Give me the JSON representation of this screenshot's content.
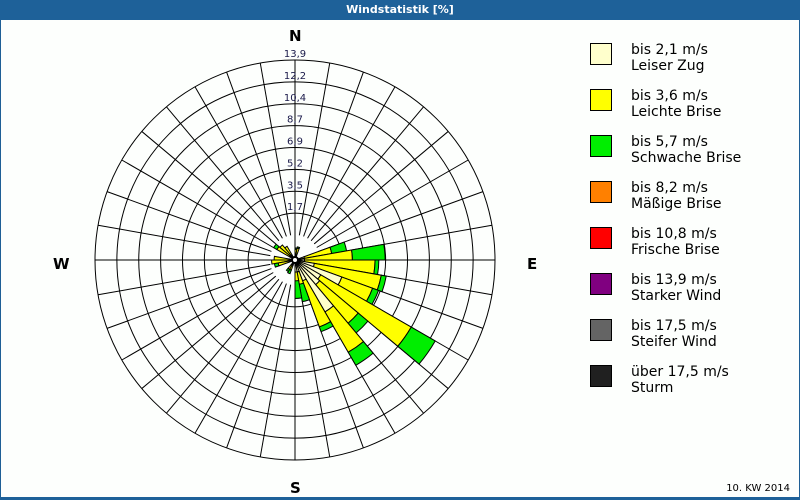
{
  "header": {
    "title": "Windstatistik [%]"
  },
  "footer": {
    "period": "10. KW 2014"
  },
  "compass": {
    "n": "N",
    "e": "E",
    "s": "S",
    "w": "W"
  },
  "legend": [
    {
      "range": "bis 2,1 m/s",
      "name": "Leiser Zug",
      "color": "#ffffcc"
    },
    {
      "range": "bis 3,6 m/s",
      "name": "Leichte Brise",
      "color": "#ffff00"
    },
    {
      "range": "bis 5,7 m/s",
      "name": "Schwache Brise",
      "color": "#00ee00"
    },
    {
      "range": "bis 8,2 m/s",
      "name": "Mäßige Brise",
      "color": "#ff8000"
    },
    {
      "range": "bis 10,8 m/s",
      "name": "Frische Brise",
      "color": "#ff0000"
    },
    {
      "range": "bis 13,9 m/s",
      "name": "Starker Wind",
      "color": "#800080"
    },
    {
      "range": "bis 17,5 m/s",
      "name": "Steifer Wind",
      "color": "#646464"
    },
    {
      "range": "über 17,5 m/s",
      "name": "Sturm",
      "color": "#202020"
    }
  ],
  "chart_data": {
    "type": "polar-stacked-bar (wind rose)",
    "title": "Windstatistik [%]",
    "subtitle": "10. KW 2014",
    "radial_unit": "%",
    "radial_ticks": [
      "1,7",
      "3,5",
      "5,2",
      "6,9",
      "8,7",
      "10,4",
      "12,2",
      "13,9"
    ],
    "radial_max": 13.9,
    "sector_width_deg": 10,
    "direction_labels": [
      "N",
      "E",
      "S",
      "W"
    ],
    "series_names": [
      "bis 2,1 m/s",
      "bis 3,6 m/s",
      "bis 5,7 m/s"
    ],
    "sectors": [
      {
        "from": 300,
        "to": 310,
        "values": [
          0.3,
          1.2,
          0.3
        ]
      },
      {
        "from": 310,
        "to": 320,
        "values": [
          0.4,
          1.0,
          0.0
        ]
      },
      {
        "from": 320,
        "to": 330,
        "values": [
          0.3,
          0.8,
          0.0
        ]
      },
      {
        "from": 260,
        "to": 270,
        "values": [
          0.3,
          1.4,
          0.0
        ]
      },
      {
        "from": 270,
        "to": 280,
        "values": [
          0.3,
          1.2,
          0.0
        ]
      },
      {
        "from": 250,
        "to": 260,
        "values": [
          0.3,
          0.9,
          0.3
        ]
      },
      {
        "from": 0,
        "to": 10,
        "values": [
          0.2,
          0.5,
          0.1
        ]
      },
      {
        "from": 10,
        "to": 20,
        "values": [
          0.2,
          0.6,
          0.1
        ]
      },
      {
        "from": 70,
        "to": 80,
        "values": [
          0.6,
          2.2,
          1.2
        ]
      },
      {
        "from": 80,
        "to": 90,
        "values": [
          0.6,
          3.8,
          2.6
        ]
      },
      {
        "from": 90,
        "to": 100,
        "values": [
          0.6,
          5.6,
          0.3
        ]
      },
      {
        "from": 100,
        "to": 110,
        "values": [
          1.4,
          5.4,
          0.4
        ]
      },
      {
        "from": 110,
        "to": 120,
        "values": [
          3.8,
          2.6,
          0.5
        ]
      },
      {
        "from": 120,
        "to": 130,
        "values": [
          2.2,
          8.3,
          2.2
        ]
      },
      {
        "from": 130,
        "to": 140,
        "values": [
          2.4,
          4.0,
          1.0
        ]
      },
      {
        "from": 140,
        "to": 150,
        "values": [
          4.6,
          3.7,
          1.2
        ]
      },
      {
        "from": 150,
        "to": 160,
        "values": [
          1.6,
          3.9,
          0.4
        ]
      },
      {
        "from": 160,
        "to": 170,
        "values": [
          0.8,
          1.0,
          1.4
        ]
      },
      {
        "from": 170,
        "to": 180,
        "values": [
          0.8,
          0.7,
          1.4
        ]
      },
      {
        "from": 200,
        "to": 210,
        "values": [
          0.3,
          0.4,
          0.3
        ]
      },
      {
        "from": 210,
        "to": 220,
        "values": [
          0.3,
          0.4,
          0.2
        ]
      }
    ]
  }
}
